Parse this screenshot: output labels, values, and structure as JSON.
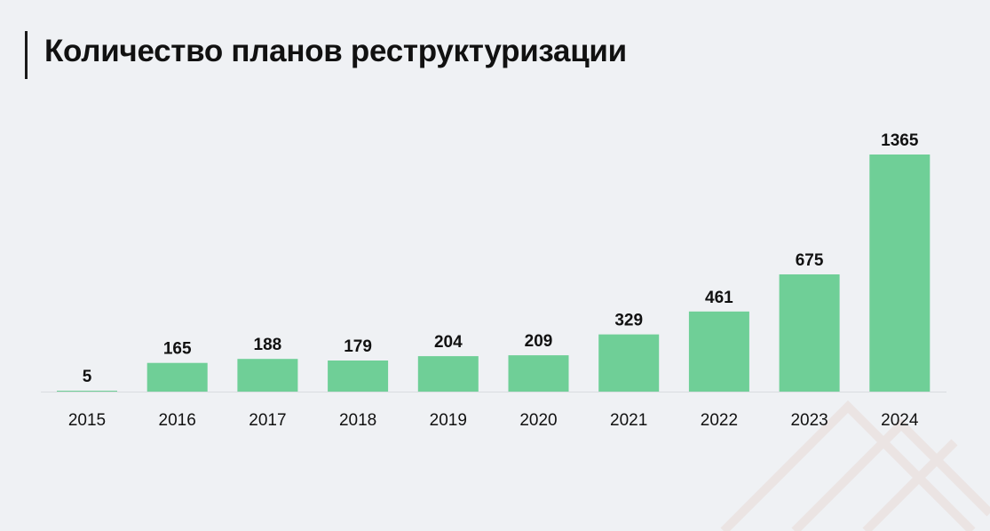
{
  "title": "Количество планов реструктуризации",
  "colors": {
    "background": "#eff1f4",
    "bar": "#6fcf97",
    "baseline": "#d9dce0",
    "label": "#111111"
  },
  "chart_data": {
    "type": "bar",
    "title": "Количество планов реструктуризации",
    "categories": [
      "2015",
      "2016",
      "2017",
      "2018",
      "2019",
      "2020",
      "2021",
      "2022",
      "2023",
      "2024"
    ],
    "values": [
      5,
      165,
      188,
      179,
      204,
      209,
      329,
      461,
      675,
      1365
    ],
    "xlabel": "",
    "ylabel": "",
    "ylim": [
      0,
      1365
    ],
    "grid": false,
    "legend": "none",
    "data_labels": true
  }
}
